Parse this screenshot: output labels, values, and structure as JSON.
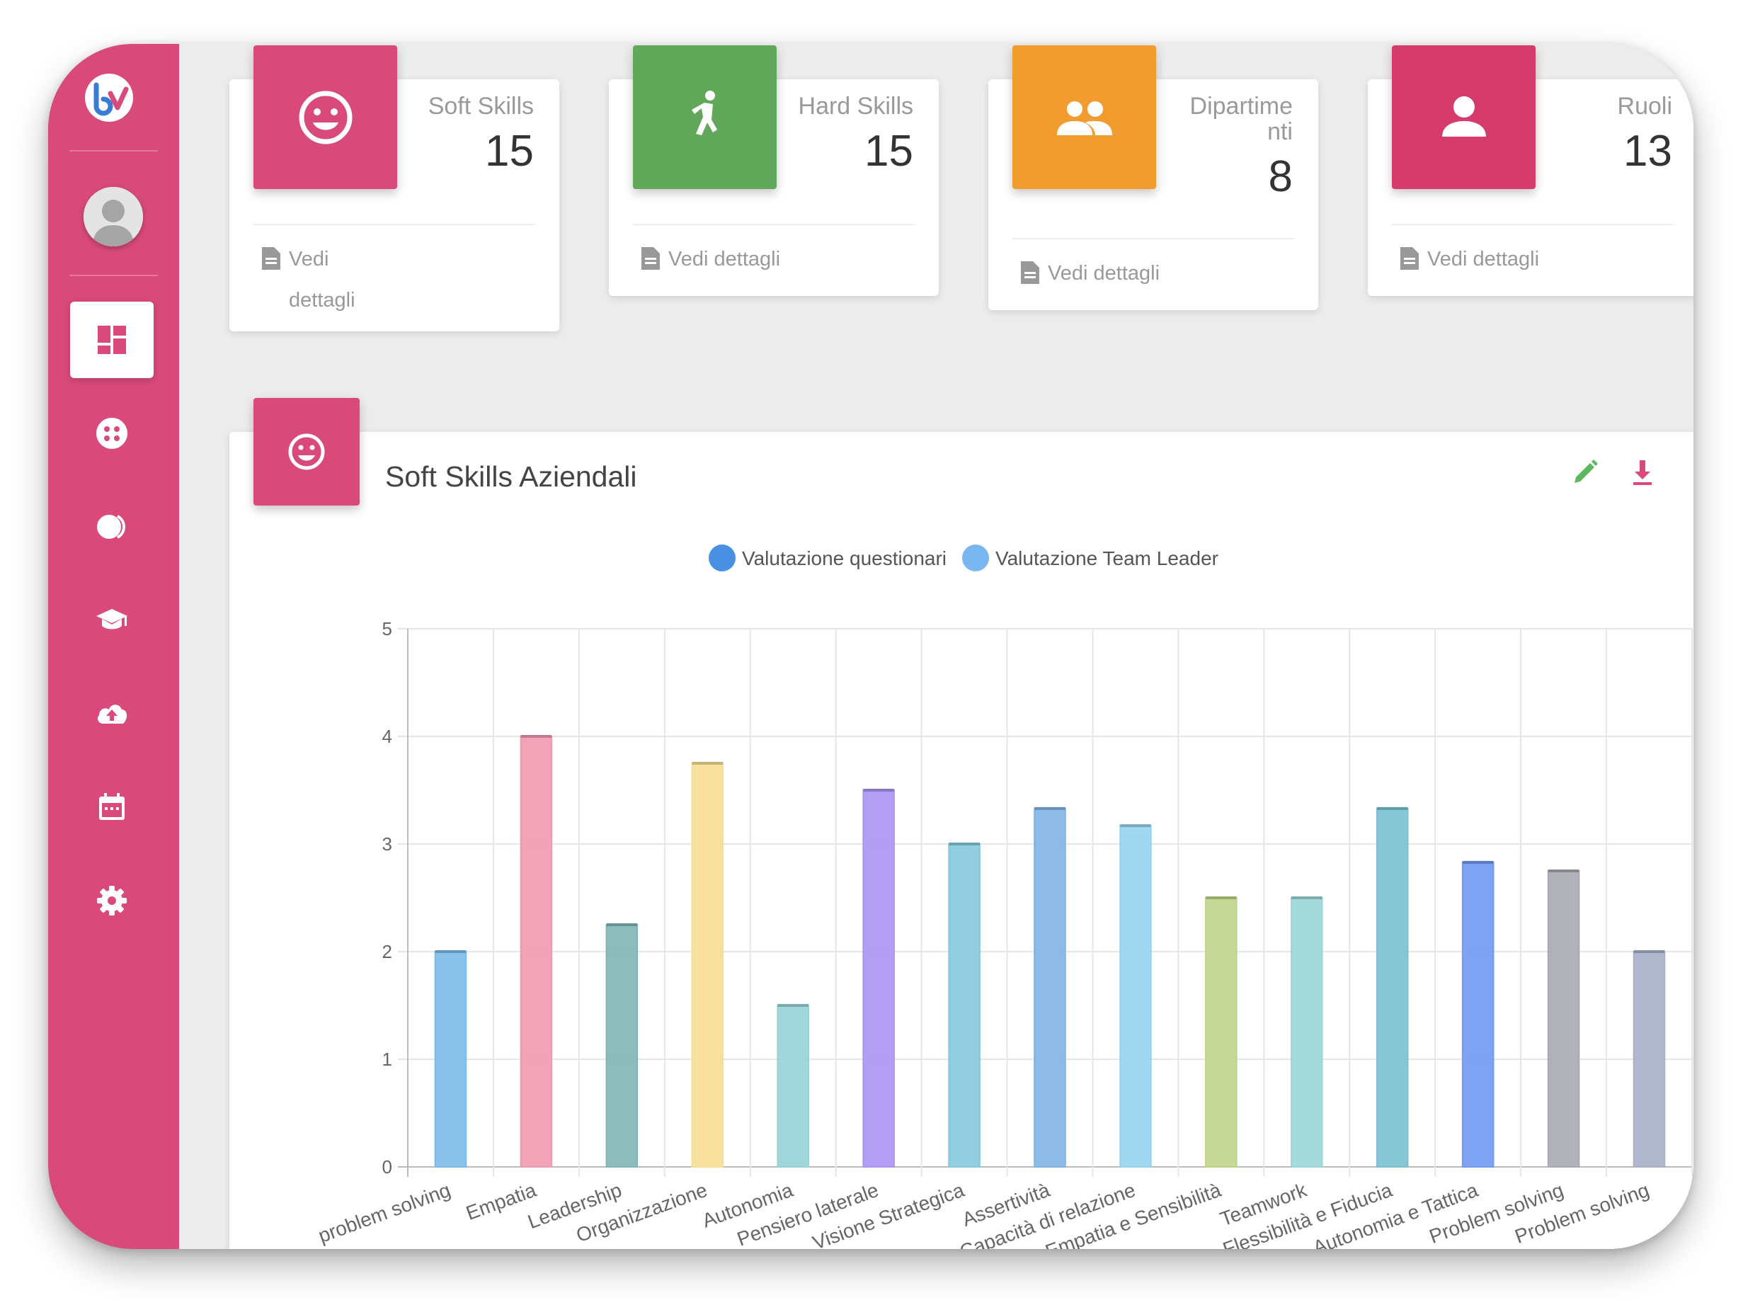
{
  "sidebar": {
    "logo_text": "bv",
    "items": [
      {
        "icon": "dashboard-icon",
        "active": true
      },
      {
        "icon": "soft-skills-icon",
        "active": false
      },
      {
        "icon": "toggle-icon",
        "active": false
      },
      {
        "icon": "graduation-cap-icon",
        "active": false
      },
      {
        "icon": "cloud-upload-icon",
        "active": false
      },
      {
        "icon": "calendar-icon",
        "active": false
      },
      {
        "icon": "settings-icon",
        "active": false
      }
    ]
  },
  "cards": [
    {
      "label": "Soft Skills",
      "value": "15",
      "footer_line1": "Vedi",
      "footer_line2": "dettagli",
      "icon": "smiley-icon",
      "color": "#d94a7a"
    },
    {
      "label": "Hard Skills",
      "value": "15",
      "footer_line1": "Vedi dettagli",
      "footer_line2": "",
      "icon": "athlete-icon",
      "color": "#62a85a"
    },
    {
      "label_line1": "Dipartime",
      "label_line2": "nti",
      "value": "8",
      "footer_line1": "Vedi dettagli",
      "footer_line2": "",
      "icon": "group-icon",
      "color": "#f29b2f"
    },
    {
      "label": "Ruoli",
      "value": "13",
      "footer_line1": "Vedi dettagli",
      "footer_line2": "",
      "icon": "person-icon",
      "color": "#d63c6b"
    }
  ],
  "panel": {
    "title": "Soft Skills Aziendali",
    "edit_icon": "pencil-icon",
    "download_icon": "download-icon"
  },
  "chart_data": {
    "type": "bar",
    "legend": [
      {
        "name": "Valutazione questionari",
        "color": "#4a90e2"
      },
      {
        "name": "Valutazione Team Leader",
        "color": "#7ab6f0"
      }
    ],
    "legend_position": "top-center",
    "categories": [
      "problem solving",
      "Empatia",
      "Leadership",
      "Organizzazione",
      "Autonomia",
      "Pensiero laterale",
      "Visione Strategica",
      "Assertività",
      "Capacità di relazione",
      "Empatia e Sensibilità",
      "Teamwork",
      "Flessibilità e Fiducia",
      "Autonomia e Tattica",
      "Problem solving",
      "Problem solving"
    ],
    "values": [
      2,
      4,
      2.25,
      3.75,
      1.5,
      3.5,
      3,
      3.33,
      3.17,
      2.5,
      2.5,
      3.33,
      2.83,
      2.75,
      2
    ],
    "colors": [
      "#7bbae8",
      "#f199b0",
      "#7fb6b5",
      "#f7dd94",
      "#97d3d6",
      "#aa95f2",
      "#85c9dc",
      "#82b2e3",
      "#97d3f0",
      "#bfd48b",
      "#9bd6d6",
      "#7ac0cf",
      "#7099f2",
      "#a9a9b2",
      "#a9b0c9"
    ],
    "yticks": [
      "0",
      "1",
      "2",
      "3",
      "4",
      "5"
    ],
    "ylim": [
      0,
      5
    ],
    "grid": true
  }
}
